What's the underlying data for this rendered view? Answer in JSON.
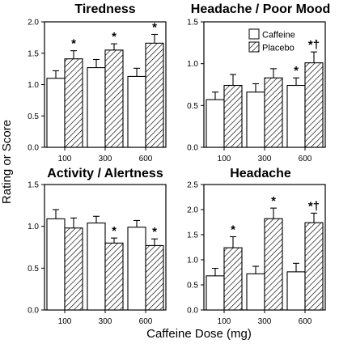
{
  "figure": {
    "ylabel": "Rating or Score",
    "xlabel": "Caffeine Dose (mg)"
  },
  "legend": {
    "items": [
      {
        "label": "Caffeine",
        "pattern": "open"
      },
      {
        "label": "Placebo",
        "pattern": "hatched"
      }
    ]
  },
  "colors": {
    "bar_fill": "#ffffff",
    "stroke": "#000000",
    "hatch": "#000000"
  },
  "chart_data": [
    {
      "type": "bar",
      "title": "Tiredness",
      "categories": [
        "100",
        "300",
        "600"
      ],
      "ylim": [
        0,
        2.0
      ],
      "yticks": [
        "0.0",
        "0.5",
        "1.0",
        "1.5",
        "2.0"
      ],
      "series": [
        {
          "name": "Caffeine",
          "values": [
            1.1,
            1.27,
            1.13
          ],
          "errors": [
            0.12,
            0.13,
            0.13
          ]
        },
        {
          "name": "Placebo",
          "values": [
            1.41,
            1.55,
            1.66
          ],
          "errors": [
            0.13,
            0.1,
            0.14
          ]
        }
      ],
      "annotations": [
        {
          "category": "100",
          "series": "Placebo",
          "text": "*"
        },
        {
          "category": "300",
          "series": "Placebo",
          "text": "*"
        },
        {
          "category": "600",
          "series": "Placebo",
          "text": "*"
        }
      ],
      "grid": false,
      "legend": false
    },
    {
      "type": "bar",
      "title": "Headache / Poor Mood",
      "categories": [
        "100",
        "300",
        "600"
      ],
      "ylim": [
        0,
        1.5
      ],
      "yticks": [
        "0.0",
        "0.5",
        "1.0",
        "1.5"
      ],
      "series": [
        {
          "name": "Caffeine",
          "values": [
            0.57,
            0.66,
            0.74
          ],
          "errors": [
            0.09,
            0.1,
            0.09
          ]
        },
        {
          "name": "Placebo",
          "values": [
            0.74,
            0.83,
            1.01
          ],
          "errors": [
            0.13,
            0.11,
            0.13
          ]
        }
      ],
      "annotations": [
        {
          "category": "600",
          "series": "Caffeine",
          "text": "*"
        },
        {
          "category": "600",
          "series": "Placebo",
          "text": "*†"
        }
      ],
      "grid": false,
      "legend": true,
      "legend_position": "top-center"
    },
    {
      "type": "bar",
      "title": "Activity / Alertness",
      "categories": [
        "100",
        "300",
        "600"
      ],
      "ylim": [
        0,
        1.5
      ],
      "yticks": [
        "0.0",
        "0.5",
        "1.0",
        "1.5"
      ],
      "series": [
        {
          "name": "Caffeine",
          "values": [
            1.09,
            1.04,
            0.99
          ],
          "errors": [
            0.11,
            0.08,
            0.08
          ]
        },
        {
          "name": "Placebo",
          "values": [
            0.98,
            0.8,
            0.77
          ],
          "errors": [
            0.12,
            0.06,
            0.08
          ]
        }
      ],
      "annotations": [
        {
          "category": "300",
          "series": "Placebo",
          "text": "*"
        },
        {
          "category": "600",
          "series": "Placebo",
          "text": "*"
        }
      ],
      "grid": false,
      "legend": false
    },
    {
      "type": "bar",
      "title": "Headache",
      "categories": [
        "100",
        "300",
        "600"
      ],
      "ylim": [
        0,
        2.5
      ],
      "yticks": [
        "0.0",
        "0.5",
        "1.0",
        "1.5",
        "2.0",
        "2.5"
      ],
      "series": [
        {
          "name": "Caffeine",
          "values": [
            0.68,
            0.72,
            0.76
          ],
          "errors": [
            0.15,
            0.15,
            0.17
          ]
        },
        {
          "name": "Placebo",
          "values": [
            1.24,
            1.82,
            1.74
          ],
          "errors": [
            0.22,
            0.21,
            0.19
          ]
        }
      ],
      "annotations": [
        {
          "category": "100",
          "series": "Placebo",
          "text": "*"
        },
        {
          "category": "300",
          "series": "Placebo",
          "text": "*"
        },
        {
          "category": "600",
          "series": "Placebo",
          "text": "*†"
        }
      ],
      "grid": false,
      "legend": false
    }
  ]
}
